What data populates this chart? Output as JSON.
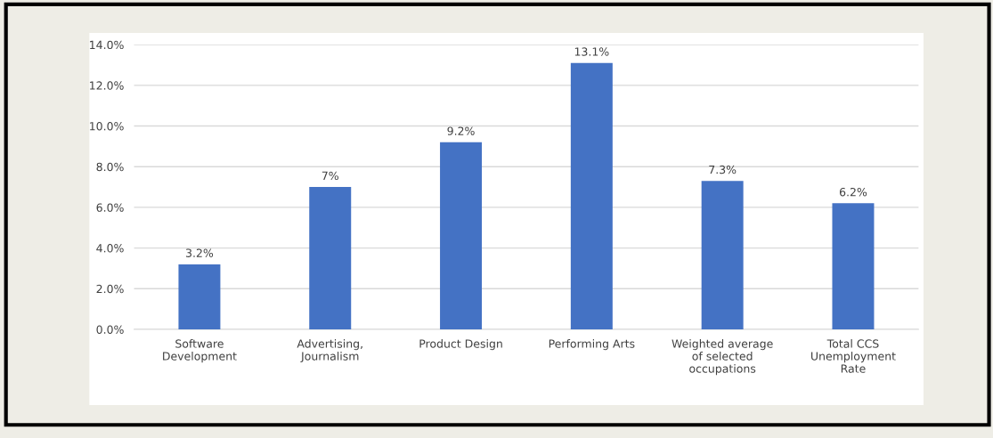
{
  "chart_data": {
    "type": "bar",
    "categories": [
      "Software\nDevelopment",
      "Advertising,\nJournalism",
      "Product Design",
      "Performing Arts",
      "Weighted average\nof selected\noccupations",
      "Total CCS\nUnemployment\nRate"
    ],
    "values": [
      3.2,
      7,
      9.2,
      13.1,
      7.3,
      6.2
    ],
    "value_labels": [
      "3.2%",
      "7%",
      "9.2%",
      "13.1%",
      "7.3%",
      "6.2%"
    ],
    "color": "#4472c4",
    "ylim": [
      0,
      14
    ],
    "yticks": [
      {
        "value": 0,
        "label": "0.0%"
      },
      {
        "value": 2,
        "label": "2.0%"
      },
      {
        "value": 4,
        "label": "4.0%"
      },
      {
        "value": 6,
        "label": "6.0%"
      },
      {
        "value": 8,
        "label": "8.0%"
      },
      {
        "value": 10,
        "label": "10.0%"
      },
      {
        "value": 12,
        "label": "12.0%"
      },
      {
        "value": 14,
        "label": "14.0%"
      }
    ],
    "grid": "y"
  }
}
